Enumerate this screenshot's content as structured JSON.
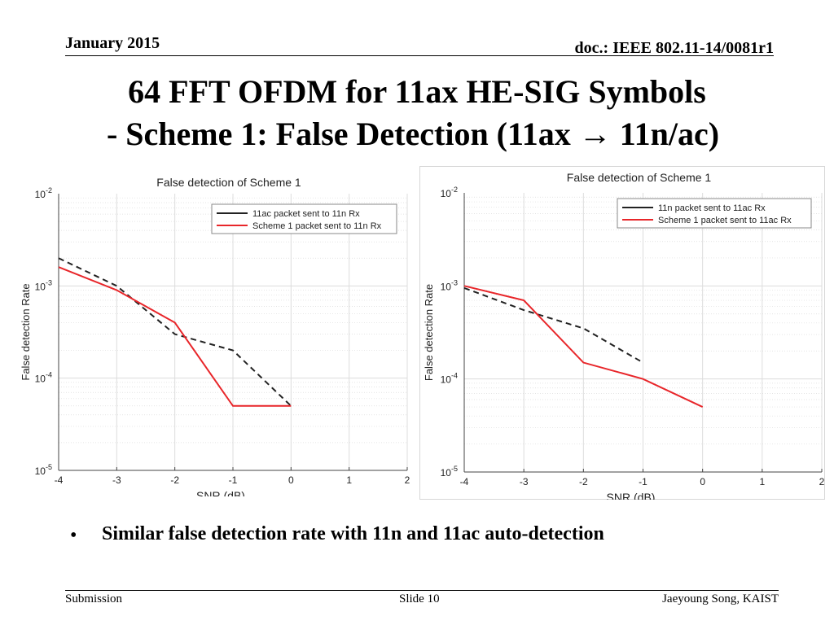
{
  "header": {
    "date": "January 2015",
    "doc_id": "doc.: IEEE 802.11-14/0081r1"
  },
  "title": {
    "line1": "64 FFT OFDM for 11ax HE-SIG Symbols",
    "line2_prefix": "- Scheme 1: False Detection (11ax ",
    "arrow": "→",
    "line2_suffix": " 11n/ac)"
  },
  "bullet": {
    "symbol": "•",
    "text": "Similar false detection rate with 11n and 11ac auto-detection"
  },
  "footer": {
    "left": "Submission",
    "center": "Slide 10",
    "right": "Jaeyoung Song, KAIST"
  },
  "colors": {
    "dashed_series": "#222222",
    "red_series": "#e8262a",
    "grid": "#dcdcdc"
  },
  "chart_data": [
    {
      "type": "line",
      "title": "False detection of Scheme 1",
      "xlabel": "SNR (dB)",
      "ylabel": "False detection Rate",
      "xlim": [
        -4,
        2
      ],
      "ylim": [
        1e-05,
        0.01
      ],
      "yscale": "log",
      "xticks": [
        "-4",
        "-3",
        "-2",
        "-1",
        "0",
        "1",
        "2"
      ],
      "yticks": [
        {
          "base": "10",
          "exp": "-2"
        },
        {
          "base": "10",
          "exp": "-3"
        },
        {
          "base": "10",
          "exp": "-4"
        },
        {
          "base": "10",
          "exp": "-5"
        }
      ],
      "grid": true,
      "legend_position": "top-right",
      "series": [
        {
          "name": "11ac packet sent to 11n Rx",
          "style": "dashed",
          "color": "#222222",
          "x": [
            -4,
            -3,
            -2,
            -1,
            0
          ],
          "y": [
            0.002,
            0.001,
            0.0003,
            0.0002,
            5e-05
          ]
        },
        {
          "name": "Scheme 1 packet sent to 11n Rx",
          "style": "solid",
          "color": "#e8262a",
          "x": [
            -4,
            -3,
            -2,
            -1,
            0
          ],
          "y": [
            0.0016,
            0.0009,
            0.0004,
            5e-05,
            5e-05
          ]
        }
      ]
    },
    {
      "type": "line",
      "title": "False detection of Scheme 1",
      "xlabel": "SNR (dB)",
      "ylabel": "False detection Rate",
      "xlim": [
        -4,
        2
      ],
      "ylim": [
        1e-05,
        0.01
      ],
      "yscale": "log",
      "xticks": [
        "-4",
        "-3",
        "-2",
        "-1",
        "0",
        "1",
        "2"
      ],
      "yticks": [
        {
          "base": "10",
          "exp": "-2"
        },
        {
          "base": "10",
          "exp": "-3"
        },
        {
          "base": "10",
          "exp": "-4"
        },
        {
          "base": "10",
          "exp": "-5"
        }
      ],
      "grid": true,
      "legend_position": "top-right",
      "series": [
        {
          "name": "11n packet sent to 11ac Rx",
          "style": "dashed",
          "color": "#222222",
          "x": [
            -4,
            -3,
            -2,
            -1
          ],
          "y": [
            0.00095,
            0.00055,
            0.00035,
            0.00015
          ]
        },
        {
          "name": "Scheme 1 packet sent to 11ac Rx",
          "style": "solid",
          "color": "#e8262a",
          "x": [
            -4,
            -3,
            -2,
            -1,
            0
          ],
          "y": [
            0.001,
            0.0007,
            0.00015,
            0.0001,
            5e-05
          ]
        }
      ]
    }
  ]
}
